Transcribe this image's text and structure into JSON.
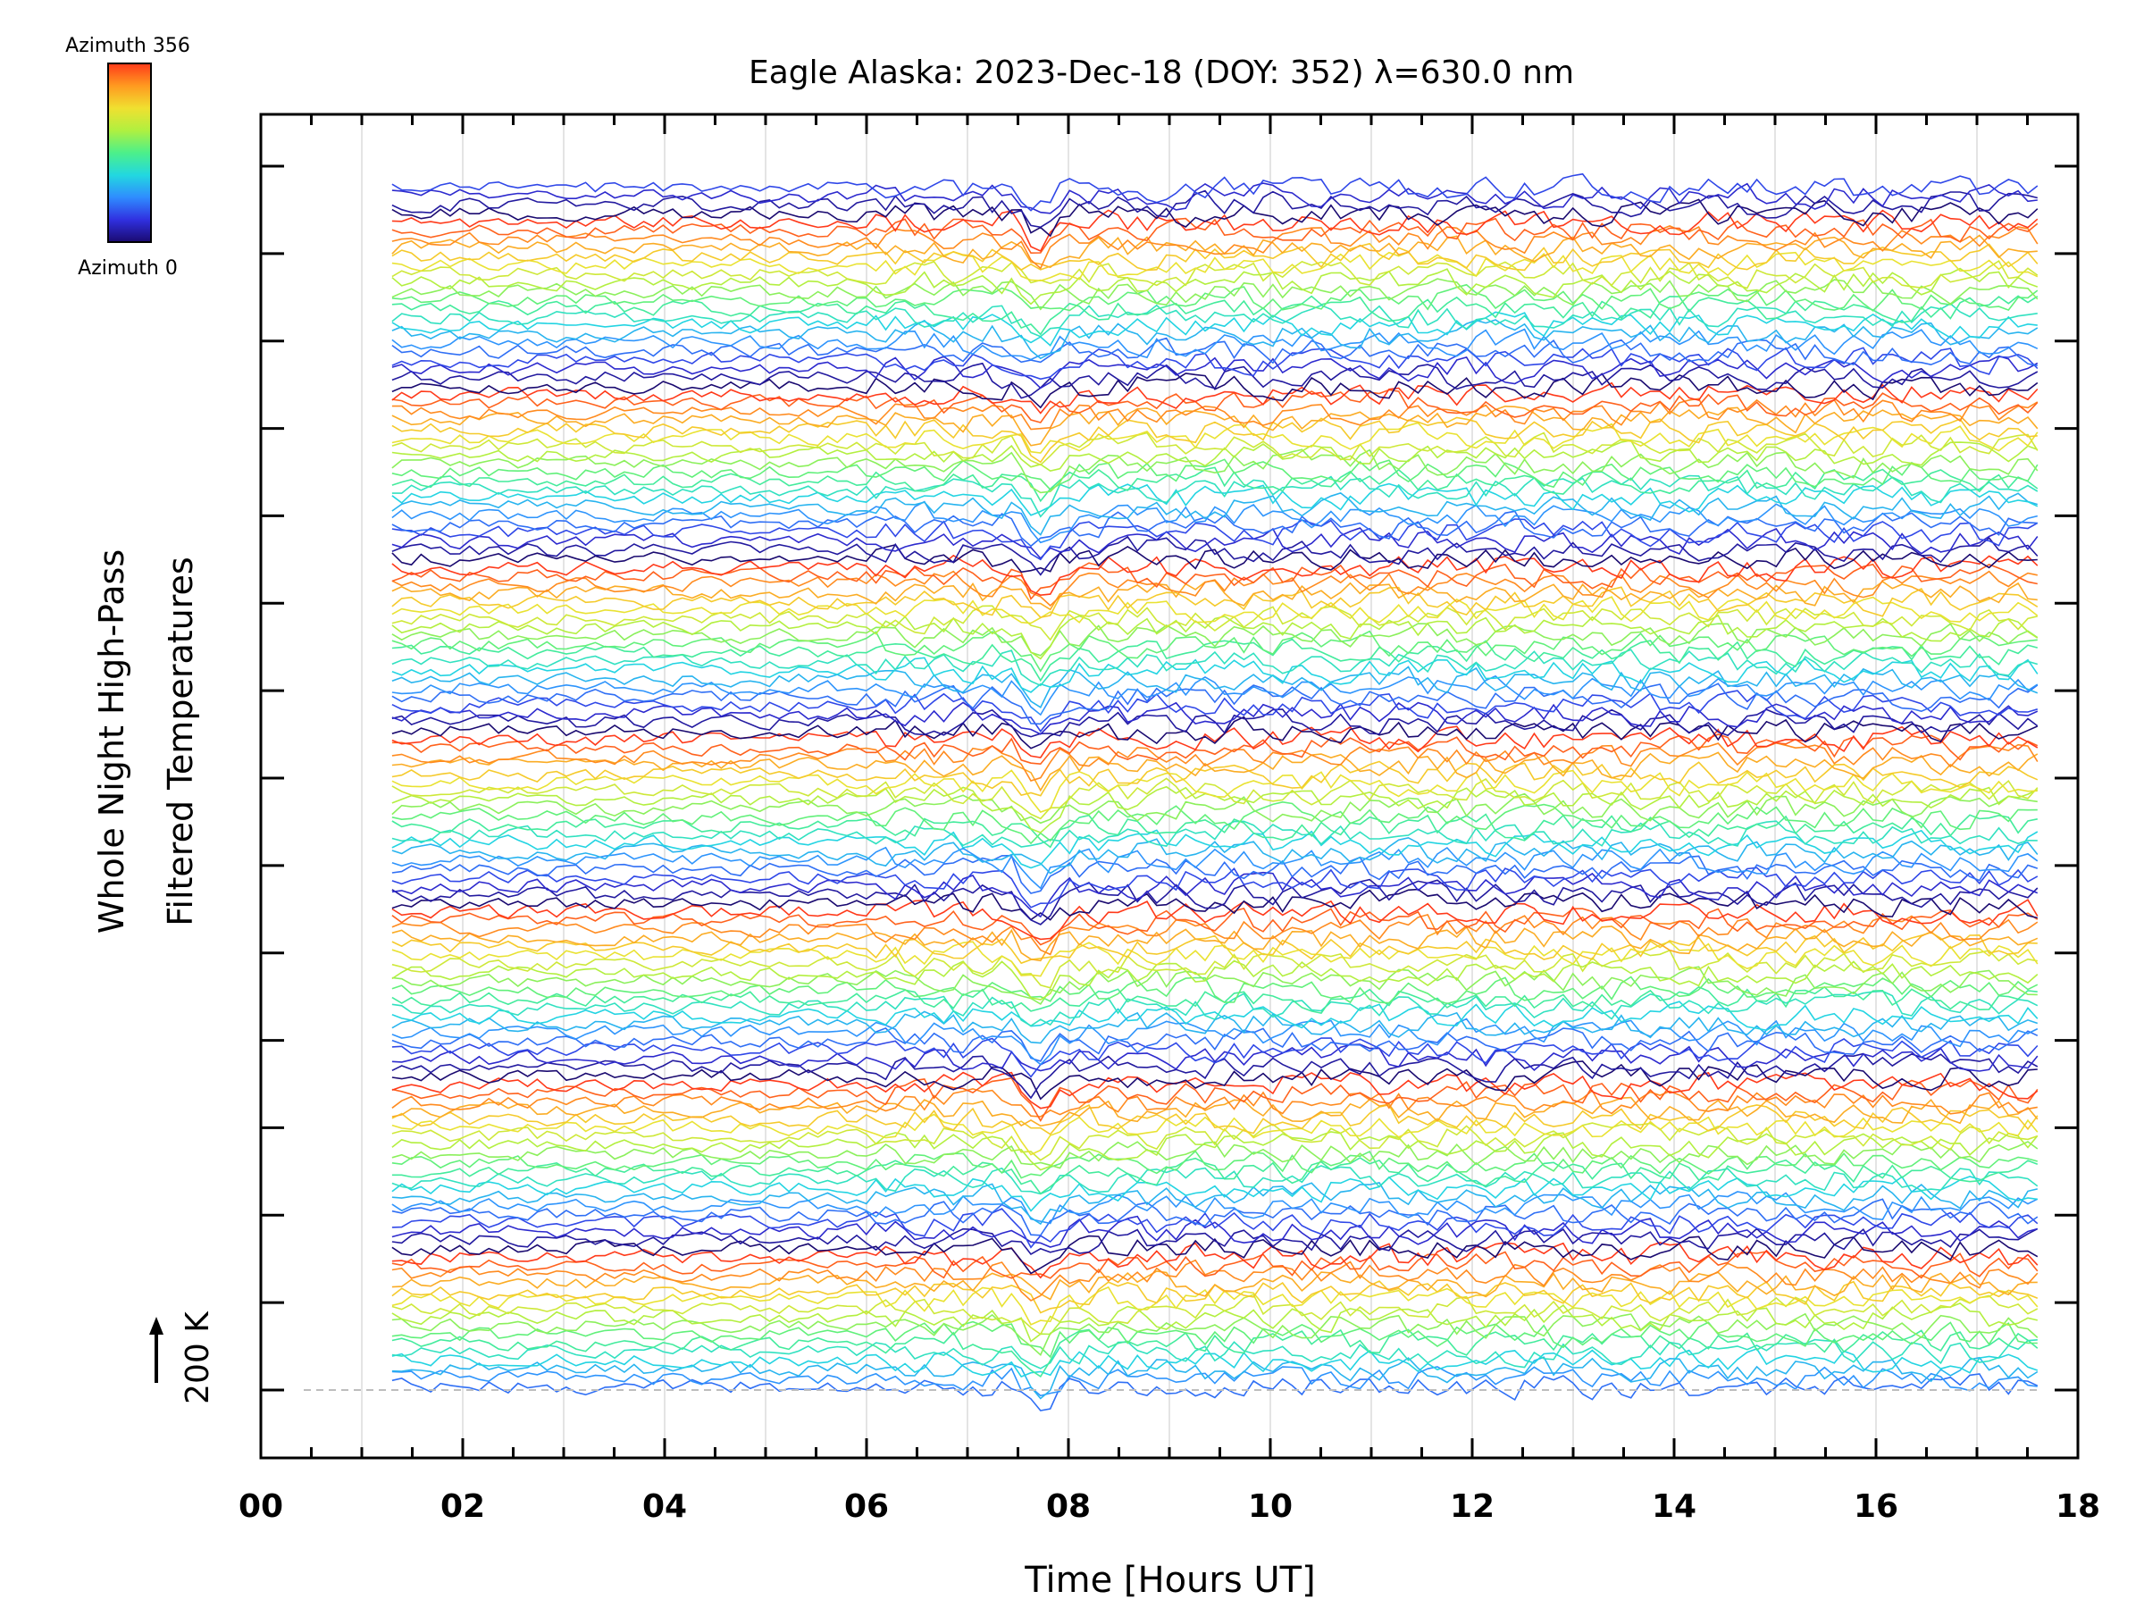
{
  "chart_data": {
    "type": "line",
    "title": "Eagle Alaska: 2023-Dec-18 (DOY: 352) λ=630.0 nm",
    "xlabel": "Time [Hours UT]",
    "ylabel_line1": "Whole Night High-Pass",
    "ylabel_line2": "Filtered Temperatures",
    "scale_label": "200 K",
    "xlim": [
      0,
      18
    ],
    "x_ticks": [
      0,
      2,
      4,
      6,
      8,
      10,
      12,
      14,
      16,
      18
    ],
    "x_tick_labels": [
      "00",
      "02",
      "04",
      "06",
      "08",
      "10",
      "12",
      "14",
      "16",
      "18"
    ],
    "data_time_range_hours_ut": [
      1.3,
      17.6
    ],
    "colorbar": {
      "top_label": "Azimuth 356",
      "bottom_label": "Azimuth 0",
      "colors": [
        "#1a0a70",
        "#3030e0",
        "#2f8cff",
        "#22d8e0",
        "#4cf08a",
        "#b0f040",
        "#f0e030",
        "#ff9a20",
        "#ff3a1a"
      ]
    },
    "series_count": 140,
    "series_color": "by azimuth",
    "grid": "vertical gridlines every hour"
  }
}
